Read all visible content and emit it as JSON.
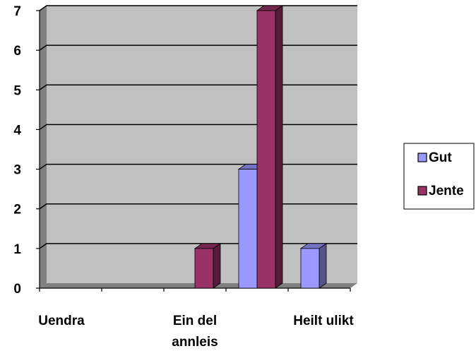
{
  "chart_data": {
    "type": "bar",
    "categories": [
      "Uendra",
      "",
      "Ein del annleis",
      "",
      "Heilt ulikt"
    ],
    "series": [
      {
        "name": "Gut",
        "values": [
          0,
          0,
          0,
          3,
          1
        ],
        "color": "#9999ff"
      },
      {
        "name": "Jente",
        "values": [
          0,
          0,
          1,
          7,
          0
        ],
        "color": "#993366"
      }
    ],
    "category_labels": [
      {
        "lines": [
          "Uendra"
        ]
      },
      {
        "lines": [
          "Ein del",
          "annleis"
        ]
      },
      {
        "lines": [
          "Heilt ulikt"
        ]
      }
    ],
    "ylim": [
      0,
      7
    ],
    "yticks": [
      "0",
      "1",
      "2",
      "3",
      "4",
      "5",
      "6",
      "7"
    ],
    "grid": true,
    "legend": "right",
    "style": "3d-column",
    "colors": {
      "plot_background": "#c0c0c0",
      "gridline": "#000000"
    }
  }
}
